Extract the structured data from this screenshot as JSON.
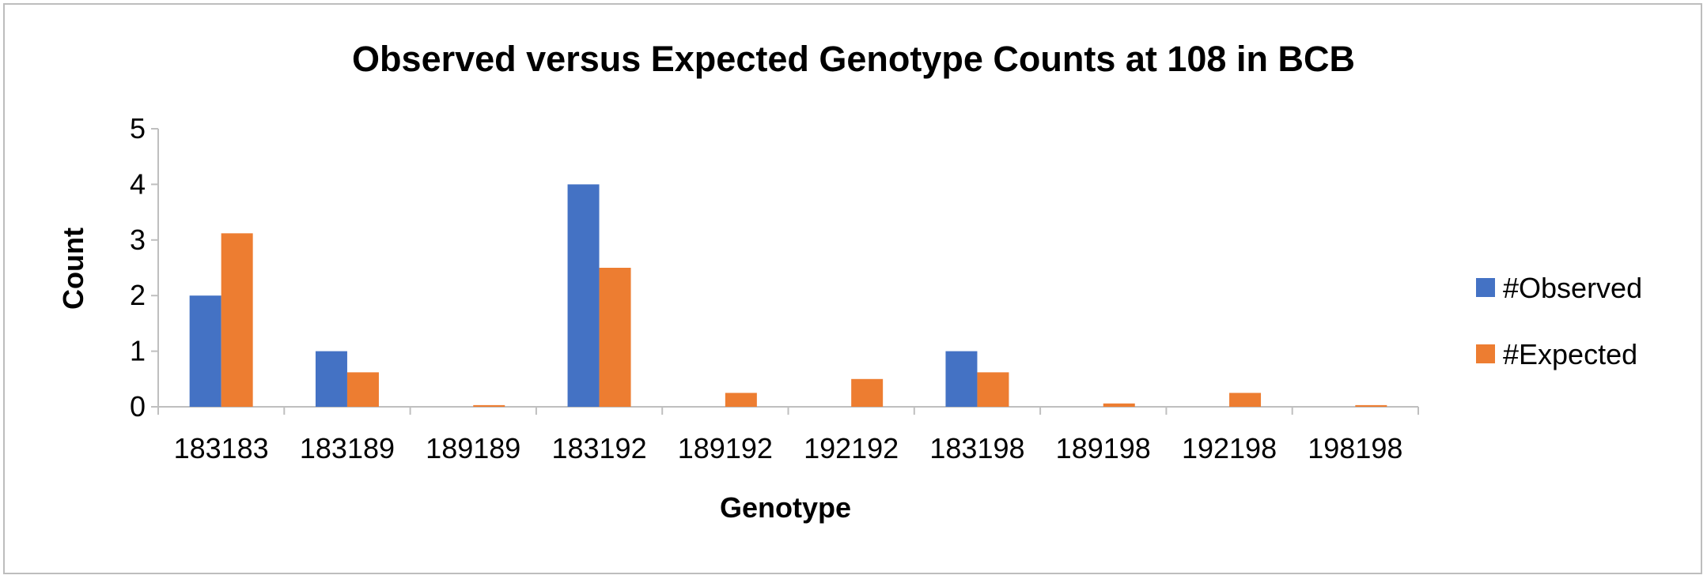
{
  "chart_data": {
    "type": "bar",
    "title": "Observed versus Expected Genotype Counts at 108 in BCB",
    "xlabel": "Genotype",
    "ylabel": "Count",
    "categories": [
      "183183",
      "183189",
      "189189",
      "183192",
      "189192",
      "192192",
      "183198",
      "189198",
      "192198",
      "198198"
    ],
    "series": [
      {
        "name": "#Observed",
        "color": "#4472C4",
        "values": [
          2,
          1,
          0,
          4,
          0,
          0,
          1,
          0,
          0,
          0
        ]
      },
      {
        "name": "#Expected",
        "color": "#ED7D31",
        "values": [
          3.12,
          0.62,
          0.03,
          2.5,
          0.25,
          0.5,
          0.62,
          0.06,
          0.25,
          0.03
        ]
      }
    ],
    "ylim": [
      0,
      5
    ],
    "yticks": [
      0,
      1,
      2,
      3,
      4,
      5
    ],
    "grid": false,
    "legend_position": "right"
  }
}
